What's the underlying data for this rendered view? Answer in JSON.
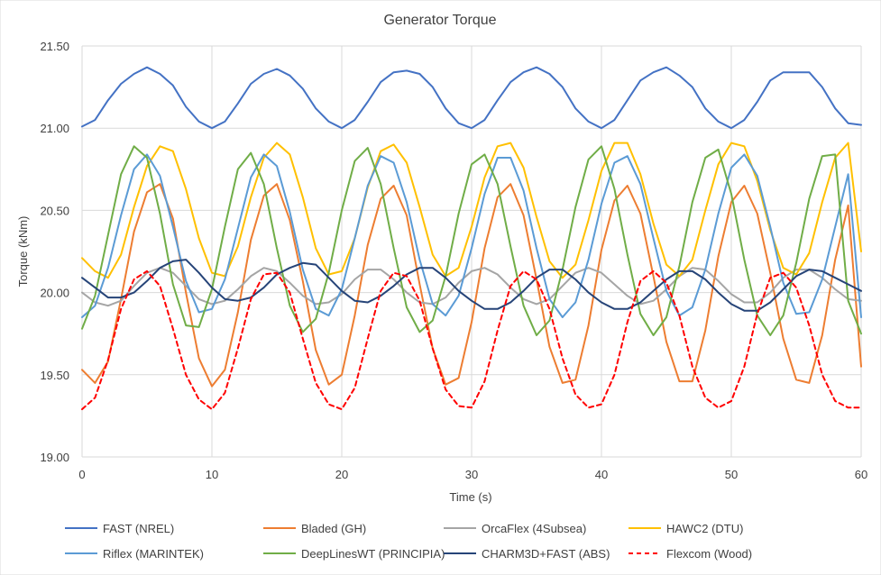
{
  "chart_data": {
    "type": "line",
    "title": "Generator Torque",
    "xlabel": "Time (s)",
    "ylabel": "Torque (kNm)",
    "xlim": [
      0,
      60
    ],
    "ylim": [
      19.0,
      21.5
    ],
    "xticks": [
      0,
      10,
      20,
      30,
      40,
      50,
      60
    ],
    "xtick_labels": [
      "0",
      "10",
      "20",
      "30",
      "40",
      "50",
      "60"
    ],
    "yticks": [
      19.0,
      19.5,
      20.0,
      20.5,
      21.0,
      21.5
    ],
    "ytick_labels": [
      "19.00",
      "19.50",
      "20.00",
      "20.50",
      "21.00",
      "21.50"
    ],
    "grid": "vertical and horizontal major gridlines",
    "legend_position": "bottom",
    "x": [
      0,
      1,
      2,
      3,
      4,
      5,
      6,
      7,
      8,
      9,
      10,
      11,
      12,
      13,
      14,
      15,
      16,
      17,
      18,
      19,
      20,
      21,
      22,
      23,
      24,
      25,
      26,
      27,
      28,
      29,
      30,
      31,
      32,
      33,
      34,
      35,
      36,
      37,
      38,
      39,
      40,
      41,
      42,
      43,
      44,
      45,
      46,
      47,
      48,
      49,
      50,
      51,
      52,
      53,
      54,
      55,
      56,
      57,
      58,
      59,
      60
    ],
    "series": [
      {
        "name": "FAST (NREL)",
        "color": "#4472C4",
        "dash": "solid",
        "values": [
          21.01,
          21.05,
          21.17,
          21.27,
          21.33,
          21.37,
          21.33,
          21.26,
          21.13,
          21.04,
          21.0,
          21.04,
          21.15,
          21.27,
          21.33,
          21.36,
          21.32,
          21.24,
          21.12,
          21.04,
          21.0,
          21.05,
          21.16,
          21.28,
          21.34,
          21.35,
          21.33,
          21.25,
          21.12,
          21.03,
          21.0,
          21.05,
          21.17,
          21.28,
          21.34,
          21.37,
          21.33,
          21.25,
          21.12,
          21.04,
          21.0,
          21.05,
          21.17,
          21.29,
          21.34,
          21.37,
          21.32,
          21.25,
          21.12,
          21.04,
          21.0,
          21.05,
          21.16,
          21.29,
          21.34,
          21.34,
          21.34,
          21.25,
          21.12,
          21.03,
          21.02
        ]
      },
      {
        "name": "Bladed (GH)",
        "color": "#ED7D31",
        "dash": "solid",
        "values": [
          19.53,
          19.45,
          19.58,
          19.96,
          20.37,
          20.61,
          20.66,
          20.45,
          20.0,
          19.6,
          19.43,
          19.53,
          19.88,
          20.32,
          20.59,
          20.66,
          20.44,
          20.07,
          19.65,
          19.44,
          19.5,
          19.86,
          20.29,
          20.57,
          20.65,
          20.47,
          20.05,
          19.66,
          19.44,
          19.48,
          19.82,
          20.27,
          20.58,
          20.66,
          20.47,
          20.08,
          19.67,
          19.45,
          19.47,
          19.8,
          20.26,
          20.56,
          20.65,
          20.48,
          20.1,
          19.7,
          19.46,
          19.46,
          19.77,
          20.22,
          20.55,
          20.65,
          20.48,
          20.12,
          19.72,
          19.47,
          19.45,
          19.74,
          20.2,
          20.53,
          19.55
        ]
      },
      {
        "name": "OrcaFlex (4Subsea)",
        "color": "#A5A5A5",
        "dash": "solid",
        "values": [
          20.0,
          19.94,
          19.92,
          19.95,
          20.04,
          20.12,
          20.15,
          20.12,
          20.04,
          19.96,
          19.93,
          19.95,
          20.02,
          20.1,
          20.15,
          20.13,
          20.06,
          19.98,
          19.93,
          19.94,
          19.99,
          20.08,
          20.14,
          20.14,
          20.08,
          20.0,
          19.94,
          19.93,
          19.97,
          20.06,
          20.13,
          20.15,
          20.11,
          20.03,
          19.96,
          19.93,
          19.96,
          20.04,
          20.12,
          20.15,
          20.12,
          20.05,
          19.98,
          19.93,
          19.95,
          20.02,
          20.1,
          20.15,
          20.14,
          20.07,
          19.99,
          19.94,
          19.94,
          20.0,
          20.09,
          20.14,
          20.14,
          20.09,
          20.02,
          19.96,
          19.95
        ]
      },
      {
        "name": "HAWC2 (DTU)",
        "color": "#FFC000",
        "dash": "solid",
        "values": [
          20.21,
          20.13,
          20.09,
          20.23,
          20.52,
          20.77,
          20.89,
          20.86,
          20.63,
          20.33,
          20.12,
          20.1,
          20.28,
          20.58,
          20.82,
          20.91,
          20.84,
          20.58,
          20.27,
          20.11,
          20.13,
          20.33,
          20.64,
          20.86,
          20.9,
          20.79,
          20.52,
          20.23,
          20.1,
          20.15,
          20.4,
          20.7,
          20.89,
          20.91,
          20.76,
          20.46,
          20.19,
          20.09,
          20.17,
          20.44,
          20.74,
          20.91,
          20.91,
          20.72,
          20.42,
          20.17,
          20.1,
          20.2,
          20.5,
          20.78,
          20.91,
          20.89,
          20.68,
          20.38,
          20.15,
          20.11,
          20.24,
          20.55,
          20.82,
          20.91,
          20.25
        ]
      },
      {
        "name": "Riflex (MARINTEK)",
        "color": "#5B9BD5",
        "dash": "solid",
        "values": [
          19.85,
          19.92,
          20.15,
          20.47,
          20.75,
          20.84,
          20.71,
          20.4,
          20.07,
          19.88,
          19.9,
          20.08,
          20.39,
          20.7,
          20.84,
          20.77,
          20.49,
          20.14,
          19.9,
          19.86,
          20.02,
          20.33,
          20.65,
          20.83,
          20.79,
          20.55,
          20.2,
          19.93,
          19.86,
          19.98,
          20.27,
          20.6,
          20.82,
          20.82,
          20.62,
          20.27,
          19.96,
          19.85,
          19.94,
          20.2,
          20.54,
          20.79,
          20.83,
          20.66,
          20.33,
          20.01,
          19.86,
          19.91,
          20.14,
          20.48,
          20.76,
          20.84,
          20.71,
          20.4,
          20.06,
          19.87,
          19.88,
          20.08,
          20.4,
          20.72,
          19.85
        ]
      },
      {
        "name": "DeepLinesWT (PRINCIPIA)",
        "color": "#70AD47",
        "dash": "solid",
        "values": [
          19.78,
          19.98,
          20.35,
          20.72,
          20.89,
          20.82,
          20.48,
          20.05,
          19.8,
          19.79,
          20.02,
          20.4,
          20.75,
          20.85,
          20.66,
          20.27,
          19.92,
          19.76,
          19.84,
          20.12,
          20.5,
          20.8,
          20.88,
          20.66,
          20.27,
          19.91,
          19.76,
          19.83,
          20.1,
          20.48,
          20.78,
          20.84,
          20.66,
          20.28,
          19.92,
          19.74,
          19.83,
          20.14,
          20.52,
          20.81,
          20.89,
          20.63,
          20.23,
          19.87,
          19.74,
          19.85,
          20.16,
          20.55,
          20.82,
          20.87,
          20.6,
          20.2,
          19.86,
          19.74,
          19.86,
          20.18,
          20.57,
          20.83,
          20.84,
          19.95,
          19.75
        ]
      },
      {
        "name": "CHARM3D+FAST (ABS)",
        "color": "#264478",
        "dash": "solid",
        "values": [
          20.09,
          20.03,
          19.97,
          19.97,
          20.0,
          20.07,
          20.15,
          20.19,
          20.2,
          20.12,
          20.03,
          19.96,
          19.95,
          19.97,
          20.03,
          20.11,
          20.15,
          20.18,
          20.17,
          20.09,
          20.01,
          19.95,
          19.94,
          19.98,
          20.04,
          20.11,
          20.15,
          20.15,
          20.09,
          20.01,
          19.95,
          19.9,
          19.9,
          19.94,
          20.01,
          20.09,
          20.14,
          20.14,
          20.08,
          20.0,
          19.94,
          19.9,
          19.9,
          19.94,
          20.01,
          20.08,
          20.13,
          20.13,
          20.08,
          20.0,
          19.93,
          19.89,
          19.89,
          19.94,
          20.02,
          20.1,
          20.14,
          20.13,
          20.09,
          20.05,
          20.01
        ]
      },
      {
        "name": "Flexcom (Wood)",
        "color": "#FF0000",
        "dash": "dashed",
        "values": [
          19.29,
          19.36,
          19.59,
          19.9,
          20.08,
          20.13,
          20.04,
          19.78,
          19.5,
          19.35,
          19.29,
          19.39,
          19.66,
          19.96,
          20.11,
          20.12,
          20.0,
          19.72,
          19.45,
          19.32,
          19.29,
          19.42,
          19.72,
          20.01,
          20.12,
          20.1,
          19.95,
          19.66,
          19.41,
          19.31,
          19.3,
          19.46,
          19.77,
          20.04,
          20.13,
          20.08,
          19.9,
          19.6,
          19.38,
          19.3,
          19.32,
          19.5,
          19.82,
          20.07,
          20.13,
          20.06,
          19.86,
          19.55,
          19.36,
          19.3,
          19.34,
          19.55,
          19.87,
          20.09,
          20.12,
          20.03,
          19.8,
          19.5,
          19.34,
          19.3,
          19.3
        ]
      }
    ]
  }
}
